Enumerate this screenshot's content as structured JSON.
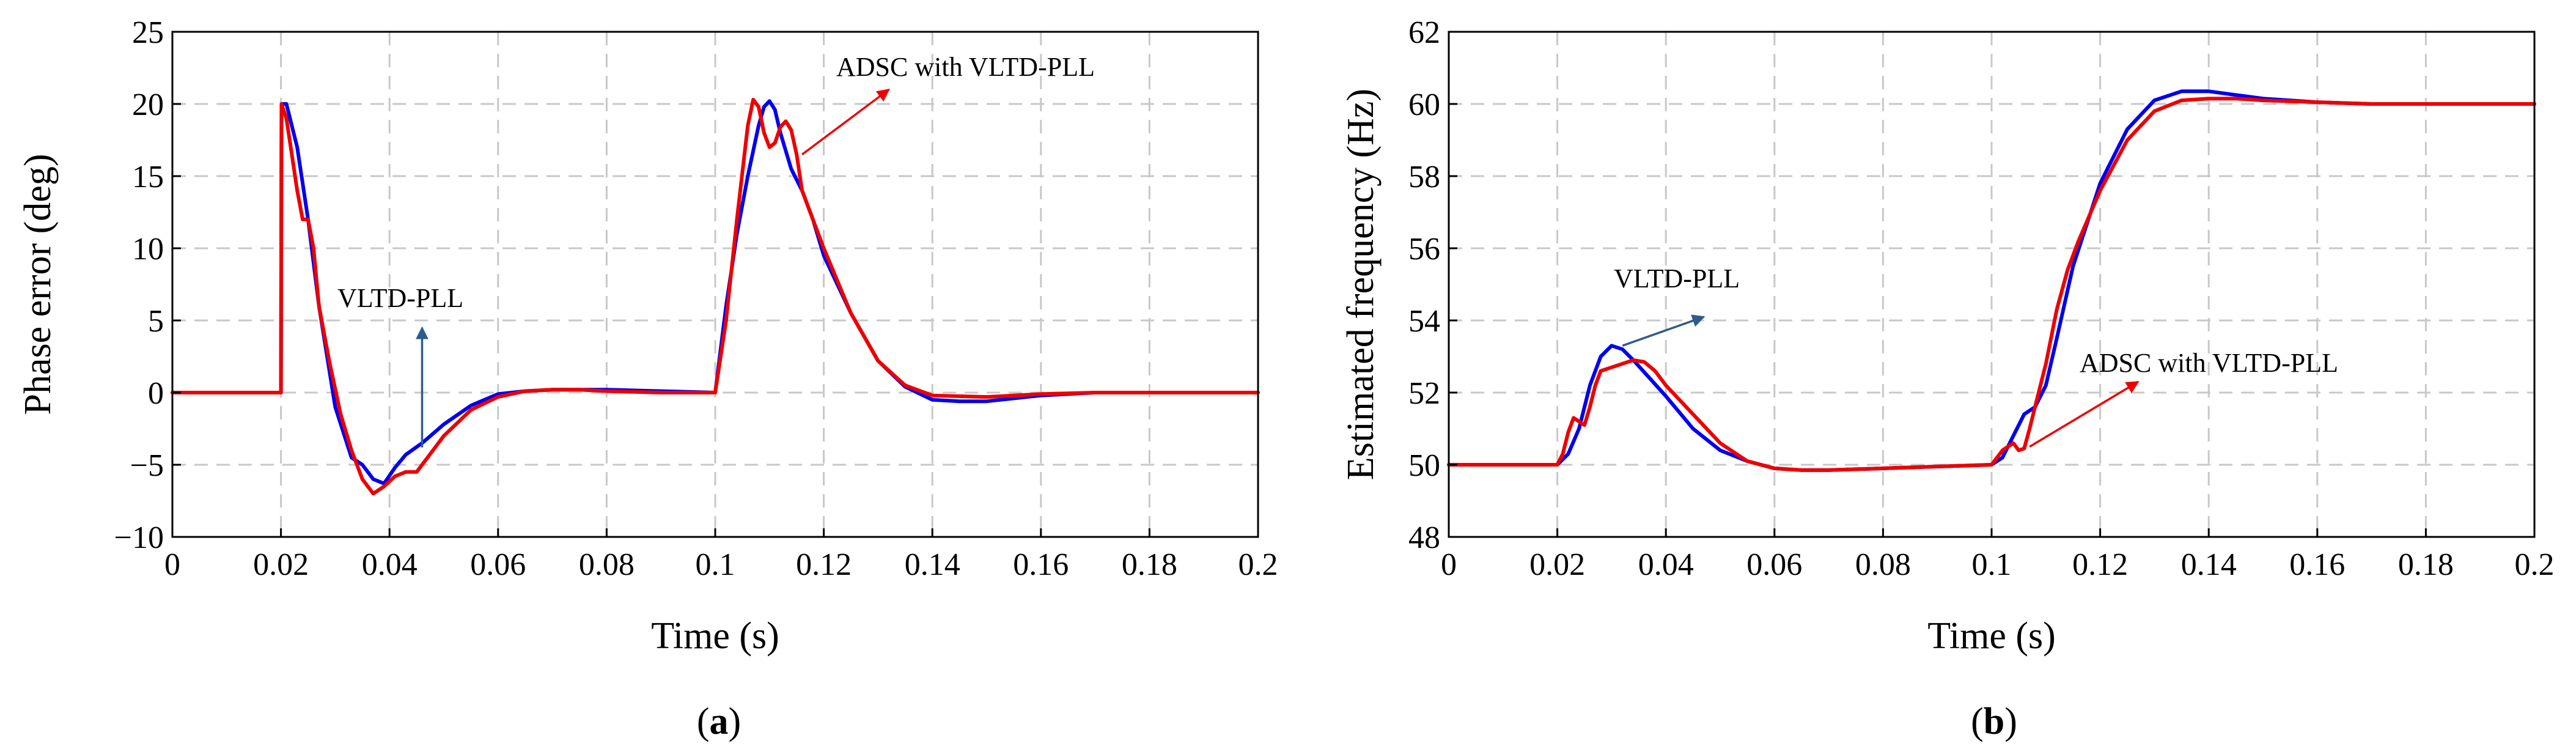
{
  "chart_data": [
    {
      "type": "line",
      "panel_label": "a",
      "xlabel": "Time (s)",
      "ylabel": "Phase error (deg)",
      "xlim": [
        0,
        0.2
      ],
      "ylim": [
        -10,
        25
      ],
      "xticks": [
        0,
        0.02,
        0.04,
        0.06,
        0.08,
        0.1,
        0.12,
        0.14,
        0.16,
        0.18,
        0.2
      ],
      "xtick_labels": [
        "0",
        "0.02",
        "0.04",
        "0.06",
        "0.08",
        "0.1",
        "0.12",
        "0.14",
        "0.16",
        "0.18",
        "0.2"
      ],
      "yticks": [
        -10,
        -5,
        0,
        5,
        10,
        15,
        20,
        25
      ],
      "ytick_labels": [
        "−10",
        "−5",
        "0",
        "5",
        "10",
        "15",
        "20",
        "25"
      ],
      "grid": true,
      "series": [
        {
          "name": "VLTD-PLL",
          "color": "#0000ee",
          "x": [
            0,
            0.02,
            0.0201,
            0.021,
            0.023,
            0.025,
            0.027,
            0.03,
            0.033,
            0.035,
            0.037,
            0.039,
            0.041,
            0.043,
            0.046,
            0.05,
            0.055,
            0.06,
            0.065,
            0.07,
            0.075,
            0.08,
            0.09,
            0.1,
            0.102,
            0.104,
            0.106,
            0.108,
            0.109,
            0.11,
            0.111,
            0.112,
            0.114,
            0.116,
            0.118,
            0.12,
            0.125,
            0.13,
            0.135,
            0.14,
            0.145,
            0.15,
            0.16,
            0.17,
            0.18,
            0.19,
            0.2
          ],
          "y": [
            0,
            0,
            20,
            20,
            17,
            12,
            6,
            -1,
            -4.5,
            -5,
            -6,
            -6.3,
            -5.2,
            -4.3,
            -3.5,
            -2.2,
            -0.9,
            -0.1,
            0.1,
            0.2,
            0.2,
            0.2,
            0.1,
            0,
            6,
            11,
            15,
            18.5,
            19.8,
            20.2,
            19.6,
            18,
            15.5,
            14,
            12,
            9.5,
            5.5,
            2.2,
            0.4,
            -0.5,
            -0.6,
            -0.6,
            -0.2,
            0,
            0,
            0,
            0
          ]
        },
        {
          "name": "ADSC with VLTD-PLL",
          "color": "#ee0000",
          "x": [
            0,
            0.02,
            0.0201,
            0.021,
            0.022,
            0.023,
            0.024,
            0.025,
            0.026,
            0.027,
            0.029,
            0.031,
            0.033,
            0.035,
            0.037,
            0.039,
            0.041,
            0.043,
            0.045,
            0.047,
            0.05,
            0.055,
            0.06,
            0.065,
            0.07,
            0.075,
            0.08,
            0.09,
            0.1,
            0.102,
            0.104,
            0.106,
            0.107,
            0.108,
            0.109,
            0.11,
            0.111,
            0.112,
            0.113,
            0.114,
            0.115,
            0.116,
            0.118,
            0.12,
            0.125,
            0.13,
            0.135,
            0.14,
            0.15,
            0.16,
            0.17,
            0.18,
            0.19,
            0.2
          ],
          "y": [
            0,
            0,
            20,
            19,
            16.5,
            14,
            12,
            12,
            10,
            6,
            2,
            -1.5,
            -4,
            -6,
            -7,
            -6.5,
            -5.8,
            -5.5,
            -5.5,
            -4.5,
            -3,
            -1.2,
            -0.3,
            0.1,
            0.2,
            0.2,
            0.1,
            0,
            0,
            5,
            12,
            18.5,
            20.3,
            19.8,
            18,
            17,
            17.3,
            18.4,
            18.8,
            18.2,
            16.5,
            14,
            12,
            10,
            5.5,
            2.2,
            0.5,
            -0.2,
            -0.3,
            -0.1,
            0,
            0,
            0,
            0
          ]
        }
      ],
      "annotations": [
        {
          "text": "VLTD-PLL",
          "color": "#2e5c8a",
          "point_at": [
            0.046,
            4.5
          ],
          "arrow_from": [
            0.046,
            -3.8
          ]
        },
        {
          "text": "ADSC with VLTD-PLL",
          "color": "#ee0000",
          "point_at": [
            0.132,
            21
          ],
          "arrow_from": [
            0.116,
            16.5
          ]
        }
      ]
    },
    {
      "type": "line",
      "panel_label": "b",
      "xlabel": "Time (s)",
      "ylabel": "Estimated frequency (Hz)",
      "xlim": [
        0,
        0.2
      ],
      "ylim": [
        48,
        62
      ],
      "xticks": [
        0,
        0.02,
        0.04,
        0.06,
        0.08,
        0.1,
        0.12,
        0.14,
        0.16,
        0.18,
        0.2
      ],
      "xtick_labels": [
        "0",
        "0.02",
        "0.04",
        "0.06",
        "0.08",
        "0.1",
        "0.12",
        "0.14",
        "0.16",
        "0.18",
        "0.2"
      ],
      "yticks": [
        48,
        50,
        52,
        54,
        56,
        58,
        60,
        62
      ],
      "ytick_labels": [
        "48",
        "50",
        "52",
        "54",
        "56",
        "58",
        "60",
        "62"
      ],
      "grid": true,
      "series": [
        {
          "name": "VLTD-PLL",
          "color": "#0000ee",
          "x": [
            0,
            0.02,
            0.022,
            0.024,
            0.026,
            0.028,
            0.03,
            0.032,
            0.034,
            0.037,
            0.04,
            0.045,
            0.05,
            0.055,
            0.06,
            0.065,
            0.07,
            0.08,
            0.09,
            0.1,
            0.102,
            0.104,
            0.106,
            0.108,
            0.11,
            0.112,
            0.115,
            0.12,
            0.125,
            0.13,
            0.135,
            0.14,
            0.145,
            0.15,
            0.16,
            0.17,
            0.18,
            0.19,
            0.2
          ],
          "y": [
            50,
            50,
            50.3,
            51,
            52.2,
            53,
            53.3,
            53.2,
            52.9,
            52.4,
            51.9,
            51,
            50.4,
            50.1,
            49.9,
            49.85,
            49.85,
            49.9,
            49.95,
            50,
            50.2,
            50.8,
            51.4,
            51.6,
            52.2,
            53.5,
            55.5,
            57.8,
            59.3,
            60.1,
            60.35,
            60.35,
            60.25,
            60.15,
            60.05,
            60,
            60,
            60,
            60
          ]
        },
        {
          "name": "ADSC with VLTD-PLL",
          "color": "#ee0000",
          "x": [
            0,
            0.02,
            0.021,
            0.022,
            0.023,
            0.024,
            0.025,
            0.026,
            0.027,
            0.028,
            0.03,
            0.032,
            0.034,
            0.036,
            0.038,
            0.04,
            0.045,
            0.05,
            0.055,
            0.06,
            0.065,
            0.07,
            0.08,
            0.09,
            0.1,
            0.102,
            0.104,
            0.105,
            0.106,
            0.107,
            0.108,
            0.11,
            0.112,
            0.114,
            0.116,
            0.118,
            0.12,
            0.125,
            0.13,
            0.135,
            0.14,
            0.145,
            0.15,
            0.16,
            0.17,
            0.18,
            0.19,
            0.2
          ],
          "y": [
            50,
            50,
            50.3,
            50.9,
            51.3,
            51.2,
            51.1,
            51.6,
            52.2,
            52.6,
            52.7,
            52.8,
            52.9,
            52.85,
            52.6,
            52.2,
            51.4,
            50.6,
            50.1,
            49.9,
            49.85,
            49.85,
            49.9,
            49.95,
            50,
            50.4,
            50.6,
            50.4,
            50.45,
            51,
            51.6,
            52.8,
            54.3,
            55.4,
            56.2,
            56.9,
            57.6,
            59,
            59.8,
            60.1,
            60.15,
            60.15,
            60.1,
            60.05,
            60,
            60,
            60,
            60
          ]
        }
      ],
      "annotations": [
        {
          "text": "VLTD-PLL",
          "color": "#2e5c8a",
          "point_at": [
            0.047,
            54.1
          ],
          "arrow_from": [
            0.032,
            53.3
          ]
        },
        {
          "text": "ADSC with VLTD-PLL",
          "color": "#ee0000",
          "point_at": [
            0.127,
            52.3
          ],
          "arrow_from": [
            0.107,
            50.5
          ]
        }
      ]
    }
  ]
}
